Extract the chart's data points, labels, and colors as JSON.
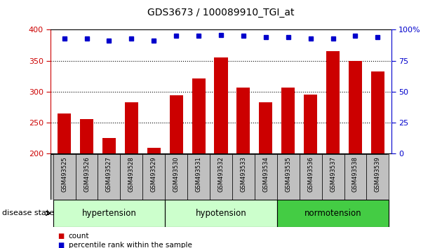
{
  "title": "GDS3673 / 100089910_TGI_at",
  "samples": [
    "GSM493525",
    "GSM493526",
    "GSM493527",
    "GSM493528",
    "GSM493529",
    "GSM493530",
    "GSM493531",
    "GSM493532",
    "GSM493533",
    "GSM493534",
    "GSM493535",
    "GSM493536",
    "GSM493537",
    "GSM493538",
    "GSM493539"
  ],
  "counts": [
    265,
    256,
    225,
    283,
    210,
    294,
    322,
    355,
    307,
    283,
    307,
    296,
    365,
    350,
    333
  ],
  "percentiles": [
    93,
    93,
    91,
    93,
    91,
    95,
    95,
    96,
    95,
    94,
    94,
    93,
    93,
    95,
    94
  ],
  "ylim_left": [
    200,
    400
  ],
  "ylim_right": [
    0,
    100
  ],
  "yticks_left": [
    200,
    250,
    300,
    350,
    400
  ],
  "yticks_right": [
    0,
    25,
    50,
    75,
    100
  ],
  "bar_color": "#CC0000",
  "dot_color": "#0000CC",
  "tick_area_color": "#C0C0C0",
  "group_defs": [
    {
      "label": "hypertension",
      "start": 0,
      "end": 5,
      "color": "#CCFFCC"
    },
    {
      "label": "hypotension",
      "start": 5,
      "end": 10,
      "color": "#CCFFCC"
    },
    {
      "label": "normotension",
      "start": 10,
      "end": 15,
      "color": "#44CC44"
    }
  ],
  "legend_count_color": "#CC0000",
  "legend_pct_color": "#0000CC"
}
